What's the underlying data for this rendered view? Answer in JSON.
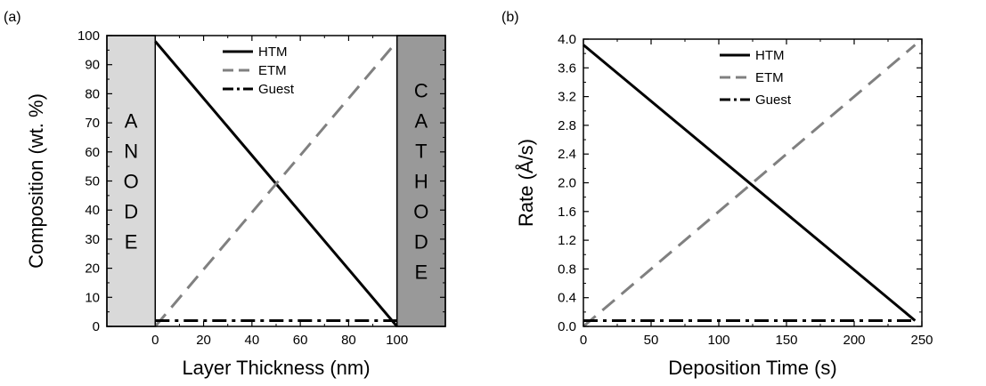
{
  "chart_data": [
    {
      "panel": "(a)",
      "type": "line",
      "xlabel": "Layer Thickness (nm)",
      "ylabel": "Composition (wt. %)",
      "xlim": [
        -20,
        120
      ],
      "ylim": [
        0,
        100
      ],
      "xticks": [
        0,
        20,
        40,
        60,
        80,
        100
      ],
      "yticks": [
        0,
        10,
        20,
        30,
        40,
        50,
        60,
        70,
        80,
        90,
        100
      ],
      "legend_position": "top-center",
      "grid": false,
      "regions": [
        {
          "name": "anode",
          "x_range": [
            -20,
            0
          ],
          "letters": [
            "A",
            "N",
            "O",
            "D",
            "E"
          ],
          "color": "#d9d9d9"
        },
        {
          "name": "cathode",
          "x_range": [
            100,
            120
          ],
          "letters": [
            "C",
            "A",
            "T",
            "H",
            "O",
            "D",
            "E"
          ],
          "color": "#999999"
        }
      ],
      "series": [
        {
          "name": "HTM",
          "style": "solid",
          "color": "#000000",
          "x": [
            0,
            100
          ],
          "y": [
            98,
            0
          ]
        },
        {
          "name": "ETM",
          "style": "dash",
          "color": "#808080",
          "x": [
            0,
            100
          ],
          "y": [
            0,
            98
          ]
        },
        {
          "name": "Guest",
          "style": "dash-dot",
          "color": "#000000",
          "x": [
            0,
            100
          ],
          "y": [
            2,
            2
          ]
        }
      ]
    },
    {
      "panel": "(b)",
      "type": "line",
      "xlabel": "Deposition Time (s)",
      "ylabel": "Rate (Å/s)",
      "xlim": [
        0,
        250
      ],
      "ylim": [
        0,
        4.0
      ],
      "xticks": [
        0,
        50,
        100,
        150,
        200,
        250
      ],
      "yticks": [
        "0.0",
        "0.4",
        "0.8",
        "1.2",
        "1.6",
        "2.0",
        "2.4",
        "2.8",
        "3.2",
        "3.6",
        "4.0"
      ],
      "legend_position": "top-center",
      "grid": false,
      "series": [
        {
          "name": "HTM",
          "style": "solid",
          "color": "#000000",
          "x": [
            0,
            245
          ],
          "y": [
            3.92,
            0.08
          ]
        },
        {
          "name": "ETM",
          "style": "dash",
          "color": "#808080",
          "x": [
            0,
            245
          ],
          "y": [
            0,
            3.92
          ]
        },
        {
          "name": "Guest",
          "style": "dash-dot",
          "color": "#000000",
          "x": [
            0,
            245
          ],
          "y": [
            0.08,
            0.08
          ]
        }
      ]
    }
  ]
}
